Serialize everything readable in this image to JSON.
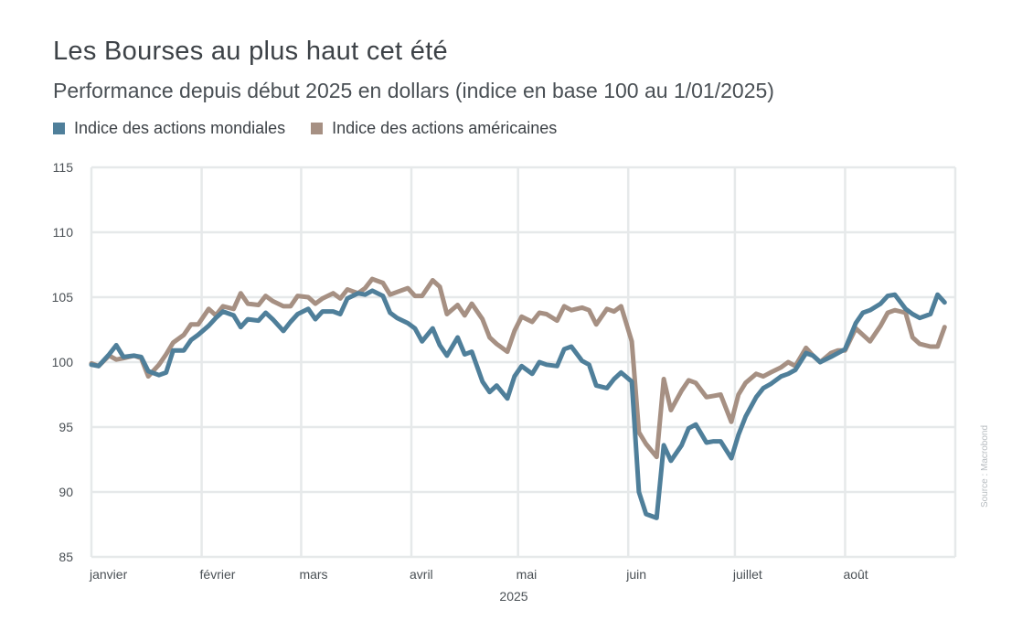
{
  "title": "Les Bourses au plus haut cet été",
  "subtitle": "Performance depuis début 2025 en dollars (indice en base 100 au 1/01/2025)",
  "source": "Source : Macrobond",
  "colors": {
    "world": "#4f7f9a",
    "us": "#a69083",
    "grid": "#e6e9ea"
  },
  "chart_data": {
    "type": "line",
    "title": "Les Bourses au plus haut cet été",
    "subtitle": "Performance depuis début 2025 en dollars (indice en base 100 au 1/01/2025)",
    "xlabel": "2025",
    "ylabel": "",
    "ylim": [
      85,
      115
    ],
    "yticks": [
      85,
      90,
      95,
      100,
      105,
      110,
      115
    ],
    "grid": true,
    "legend_position": "top-left",
    "x_tick_labels": [
      "janvier",
      "février",
      "mars",
      "avril",
      "mai",
      "juin",
      "juillet",
      "août"
    ],
    "x_tick_dates": [
      "2025-01-01",
      "2025-02-01",
      "2025-03-01",
      "2025-04-01",
      "2025-05-01",
      "2025-06-01",
      "2025-07-01",
      "2025-08-01"
    ],
    "series": [
      {
        "name": "Indice des actions mondiales",
        "color": "#4f7f9a",
        "points": [
          [
            "2025-01-01",
            99.8
          ],
          [
            "2025-01-03",
            99.7
          ],
          [
            "2025-01-06",
            100.6
          ],
          [
            "2025-01-08",
            101.3
          ],
          [
            "2025-01-10",
            100.4
          ],
          [
            "2025-01-13",
            100.5
          ],
          [
            "2025-01-15",
            100.4
          ],
          [
            "2025-01-17",
            99.3
          ],
          [
            "2025-01-20",
            99.0
          ],
          [
            "2025-01-22",
            99.2
          ],
          [
            "2025-01-24",
            100.9
          ],
          [
            "2025-01-27",
            100.9
          ],
          [
            "2025-01-29",
            101.7
          ],
          [
            "2025-01-31",
            102.1
          ],
          [
            "2025-02-03",
            102.8
          ],
          [
            "2025-02-05",
            103.4
          ],
          [
            "2025-02-07",
            103.9
          ],
          [
            "2025-02-10",
            103.6
          ],
          [
            "2025-02-12",
            102.7
          ],
          [
            "2025-02-14",
            103.3
          ],
          [
            "2025-02-17",
            103.2
          ],
          [
            "2025-02-19",
            103.8
          ],
          [
            "2025-02-21",
            103.3
          ],
          [
            "2025-02-24",
            102.4
          ],
          [
            "2025-02-26",
            103.1
          ],
          [
            "2025-02-28",
            103.7
          ],
          [
            "2025-03-03",
            104.1
          ],
          [
            "2025-03-05",
            103.3
          ],
          [
            "2025-03-07",
            103.9
          ],
          [
            "2025-03-10",
            103.9
          ],
          [
            "2025-03-12",
            103.7
          ],
          [
            "2025-03-14",
            104.9
          ],
          [
            "2025-03-17",
            105.3
          ],
          [
            "2025-03-19",
            105.2
          ],
          [
            "2025-03-21",
            105.5
          ],
          [
            "2025-03-24",
            105.1
          ],
          [
            "2025-03-26",
            103.8
          ],
          [
            "2025-03-28",
            103.4
          ],
          [
            "2025-03-31",
            103.0
          ],
          [
            "2025-04-02",
            102.6
          ],
          [
            "2025-04-04",
            101.6
          ],
          [
            "2025-04-07",
            102.6
          ],
          [
            "2025-04-09",
            101.3
          ],
          [
            "2025-04-11",
            100.5
          ],
          [
            "2025-04-14",
            101.9
          ],
          [
            "2025-04-16",
            100.6
          ],
          [
            "2025-04-18",
            100.8
          ],
          [
            "2025-04-21",
            98.5
          ],
          [
            "2025-04-23",
            97.7
          ],
          [
            "2025-04-25",
            98.2
          ],
          [
            "2025-04-28",
            97.2
          ],
          [
            "2025-04-30",
            98.9
          ],
          [
            "2025-05-02",
            99.7
          ],
          [
            "2025-05-05",
            99.1
          ],
          [
            "2025-05-07",
            100.0
          ],
          [
            "2025-05-09",
            99.8
          ],
          [
            "2025-05-12",
            99.7
          ],
          [
            "2025-05-14",
            101.0
          ],
          [
            "2025-05-16",
            101.2
          ],
          [
            "2025-05-19",
            100.1
          ],
          [
            "2025-05-21",
            99.8
          ],
          [
            "2025-05-23",
            98.2
          ],
          [
            "2025-05-26",
            98.0
          ],
          [
            "2025-05-28",
            98.7
          ],
          [
            "2025-05-30",
            99.2
          ],
          [
            "2025-06-02",
            98.5
          ],
          [
            "2025-06-04",
            90.0
          ],
          [
            "2025-06-06",
            88.3
          ],
          [
            "2025-06-09",
            88.0
          ],
          [
            "2025-06-11",
            93.6
          ],
          [
            "2025-06-13",
            92.4
          ],
          [
            "2025-06-16",
            93.6
          ],
          [
            "2025-06-18",
            94.9
          ],
          [
            "2025-06-20",
            95.2
          ],
          [
            "2025-06-23",
            93.8
          ],
          [
            "2025-06-25",
            93.9
          ],
          [
            "2025-06-27",
            93.9
          ],
          [
            "2025-06-30",
            92.6
          ],
          [
            "2025-07-02",
            94.4
          ],
          [
            "2025-07-04",
            95.8
          ],
          [
            "2025-07-07",
            97.3
          ],
          [
            "2025-07-09",
            98.0
          ],
          [
            "2025-07-11",
            98.3
          ],
          [
            "2025-07-14",
            98.9
          ],
          [
            "2025-07-16",
            99.1
          ],
          [
            "2025-07-18",
            99.4
          ],
          [
            "2025-07-21",
            100.7
          ],
          [
            "2025-07-23",
            100.5
          ],
          [
            "2025-07-25",
            100.0
          ],
          [
            "2025-07-28",
            100.4
          ],
          [
            "2025-07-30",
            100.7
          ],
          [
            "2025-08-01",
            101.0
          ],
          [
            "2025-08-04",
            103.0
          ],
          [
            "2025-08-06",
            103.8
          ],
          [
            "2025-08-08",
            104.0
          ],
          [
            "2025-08-11",
            104.5
          ],
          [
            "2025-08-13",
            105.1
          ],
          [
            "2025-08-15",
            105.2
          ],
          [
            "2025-08-18",
            104.1
          ],
          [
            "2025-08-20",
            103.7
          ],
          [
            "2025-08-22",
            103.4
          ],
          [
            "2025-08-25",
            103.7
          ],
          [
            "2025-08-27",
            105.2
          ],
          [
            "2025-08-29",
            104.6
          ]
        ]
      },
      {
        "name": "Indice des actions américaines",
        "color": "#a69083",
        "points": [
          [
            "2025-01-01",
            99.9
          ],
          [
            "2025-01-03",
            99.7
          ],
          [
            "2025-01-06",
            100.5
          ],
          [
            "2025-01-08",
            100.2
          ],
          [
            "2025-01-10",
            100.3
          ],
          [
            "2025-01-13",
            100.5
          ],
          [
            "2025-01-15",
            100.3
          ],
          [
            "2025-01-17",
            98.9
          ],
          [
            "2025-01-20",
            99.8
          ],
          [
            "2025-01-22",
            100.6
          ],
          [
            "2025-01-24",
            101.5
          ],
          [
            "2025-01-27",
            102.1
          ],
          [
            "2025-01-29",
            102.9
          ],
          [
            "2025-01-31",
            102.9
          ],
          [
            "2025-02-03",
            104.1
          ],
          [
            "2025-02-05",
            103.6
          ],
          [
            "2025-02-07",
            104.3
          ],
          [
            "2025-02-10",
            104.1
          ],
          [
            "2025-02-12",
            105.3
          ],
          [
            "2025-02-14",
            104.5
          ],
          [
            "2025-02-17",
            104.4
          ],
          [
            "2025-02-19",
            105.1
          ],
          [
            "2025-02-21",
            104.7
          ],
          [
            "2025-02-24",
            104.3
          ],
          [
            "2025-02-26",
            104.3
          ],
          [
            "2025-02-28",
            105.1
          ],
          [
            "2025-03-03",
            105.0
          ],
          [
            "2025-03-05",
            104.5
          ],
          [
            "2025-03-07",
            104.9
          ],
          [
            "2025-03-10",
            105.3
          ],
          [
            "2025-03-12",
            104.9
          ],
          [
            "2025-03-14",
            105.6
          ],
          [
            "2025-03-17",
            105.3
          ],
          [
            "2025-03-19",
            105.7
          ],
          [
            "2025-03-21",
            106.4
          ],
          [
            "2025-03-24",
            106.1
          ],
          [
            "2025-03-26",
            105.2
          ],
          [
            "2025-03-28",
            105.4
          ],
          [
            "2025-03-31",
            105.7
          ],
          [
            "2025-04-02",
            105.1
          ],
          [
            "2025-04-04",
            105.1
          ],
          [
            "2025-04-07",
            106.3
          ],
          [
            "2025-04-09",
            105.8
          ],
          [
            "2025-04-11",
            103.7
          ],
          [
            "2025-04-14",
            104.4
          ],
          [
            "2025-04-16",
            103.6
          ],
          [
            "2025-04-18",
            104.5
          ],
          [
            "2025-04-21",
            103.3
          ],
          [
            "2025-04-23",
            101.9
          ],
          [
            "2025-04-25",
            101.4
          ],
          [
            "2025-04-28",
            100.8
          ],
          [
            "2025-04-30",
            102.4
          ],
          [
            "2025-05-02",
            103.5
          ],
          [
            "2025-05-05",
            103.1
          ],
          [
            "2025-05-07",
            103.8
          ],
          [
            "2025-05-09",
            103.7
          ],
          [
            "2025-05-12",
            103.2
          ],
          [
            "2025-05-14",
            104.3
          ],
          [
            "2025-05-16",
            104.0
          ],
          [
            "2025-05-19",
            104.2
          ],
          [
            "2025-05-21",
            104.0
          ],
          [
            "2025-05-23",
            102.9
          ],
          [
            "2025-05-26",
            104.1
          ],
          [
            "2025-05-28",
            103.9
          ],
          [
            "2025-05-30",
            104.3
          ],
          [
            "2025-06-02",
            101.6
          ],
          [
            "2025-06-04",
            94.6
          ],
          [
            "2025-06-06",
            93.7
          ],
          [
            "2025-06-09",
            92.7
          ],
          [
            "2025-06-11",
            98.7
          ],
          [
            "2025-06-13",
            96.3
          ],
          [
            "2025-06-16",
            97.8
          ],
          [
            "2025-06-18",
            98.6
          ],
          [
            "2025-06-20",
            98.4
          ],
          [
            "2025-06-23",
            97.3
          ],
          [
            "2025-06-25",
            97.4
          ],
          [
            "2025-06-27",
            97.5
          ],
          [
            "2025-06-30",
            95.4
          ],
          [
            "2025-07-02",
            97.5
          ],
          [
            "2025-07-04",
            98.4
          ],
          [
            "2025-07-07",
            99.1
          ],
          [
            "2025-07-09",
            98.9
          ],
          [
            "2025-07-11",
            99.2
          ],
          [
            "2025-07-14",
            99.6
          ],
          [
            "2025-07-16",
            100.0
          ],
          [
            "2025-07-18",
            99.7
          ],
          [
            "2025-07-21",
            101.1
          ],
          [
            "2025-07-23",
            100.5
          ],
          [
            "2025-07-25",
            100.0
          ],
          [
            "2025-07-28",
            100.7
          ],
          [
            "2025-07-30",
            100.9
          ],
          [
            "2025-08-01",
            100.9
          ],
          [
            "2025-08-04",
            102.6
          ],
          [
            "2025-08-06",
            102.1
          ],
          [
            "2025-08-08",
            101.6
          ],
          [
            "2025-08-11",
            102.8
          ],
          [
            "2025-08-13",
            103.8
          ],
          [
            "2025-08-15",
            104.0
          ],
          [
            "2025-08-18",
            103.8
          ],
          [
            "2025-08-20",
            101.9
          ],
          [
            "2025-08-22",
            101.4
          ],
          [
            "2025-08-25",
            101.2
          ],
          [
            "2025-08-27",
            101.2
          ],
          [
            "2025-08-29",
            102.7
          ]
        ]
      }
    ]
  }
}
